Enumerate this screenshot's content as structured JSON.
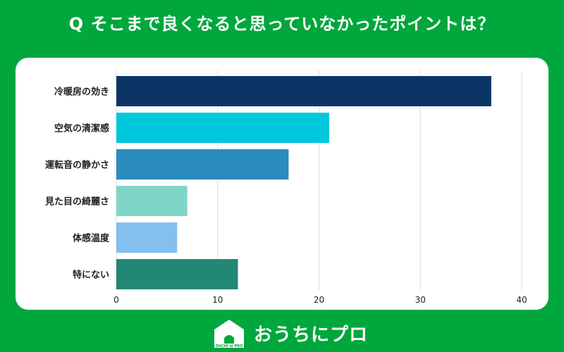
{
  "title": "Q そこまで良くなると思っていなかったポイントは？",
  "brand": {
    "name": "おうちにプロ",
    "logo_text": "OUCHI ni PRO"
  },
  "colors": {
    "background": "#00a73c",
    "bars": [
      "#0c3566",
      "#00c8dc",
      "#2a8bbf",
      "#7fd6c8",
      "#84bfee",
      "#238776"
    ]
  },
  "chart_data": {
    "type": "bar",
    "orientation": "horizontal",
    "categories": [
      "冷暖房の効き",
      "空気の清潔感",
      "運転音の静かさ",
      "見た目の綺麗さ",
      "体感温度",
      "特にない"
    ],
    "values": [
      37,
      21,
      17,
      7,
      6,
      12
    ],
    "xlim": [
      0,
      40
    ],
    "xticks": [
      "0",
      "10",
      "20",
      "30",
      "40"
    ],
    "grid": true
  }
}
